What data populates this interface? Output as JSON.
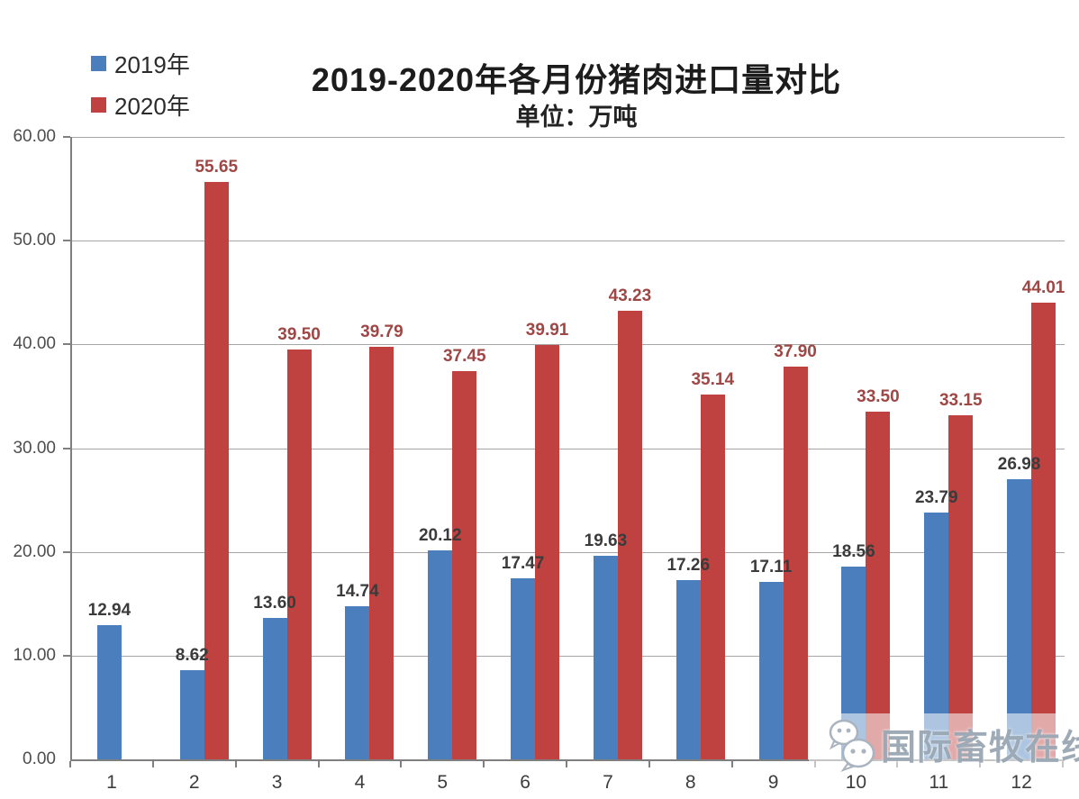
{
  "title": "2019-2020年各月份猪肉进口量对比",
  "subtitle": "单位：万吨",
  "legend": [
    {
      "label": "2019年",
      "color": "#4a7ebc"
    },
    {
      "label": "2020年",
      "color": "#bf4140"
    }
  ],
  "watermark": {
    "icon": "wechat-icon",
    "text": "国际畜牧在线"
  },
  "chart_data": {
    "type": "bar",
    "title": "2019-2020年各月份猪肉进口量对比",
    "subtitle": "单位：万吨",
    "categories": [
      "1",
      "2",
      "3",
      "4",
      "5",
      "6",
      "7",
      "8",
      "9",
      "10",
      "11",
      "12"
    ],
    "series": [
      {
        "name": "2019年",
        "color": "#4a7ebc",
        "label_color": "#3b3b3b",
        "values": [
          12.94,
          8.62,
          13.6,
          14.74,
          20.12,
          17.47,
          19.63,
          17.26,
          17.11,
          18.56,
          23.79,
          26.98
        ]
      },
      {
        "name": "2020年",
        "color": "#bf4140",
        "label_color": "#9e4745",
        "values": [
          null,
          55.65,
          39.5,
          39.79,
          37.45,
          39.91,
          43.23,
          35.14,
          37.9,
          33.5,
          33.15,
          44.01
        ]
      }
    ],
    "ylim": [
      0,
      60
    ],
    "ytick_step": 10,
    "ytick_labels": [
      "0.00",
      "10.00",
      "20.00",
      "30.00",
      "40.00",
      "50.00",
      "60.00"
    ],
    "xlabel": "",
    "ylabel": "",
    "grid": true,
    "legend_position": "top-left",
    "data_labels": true
  }
}
